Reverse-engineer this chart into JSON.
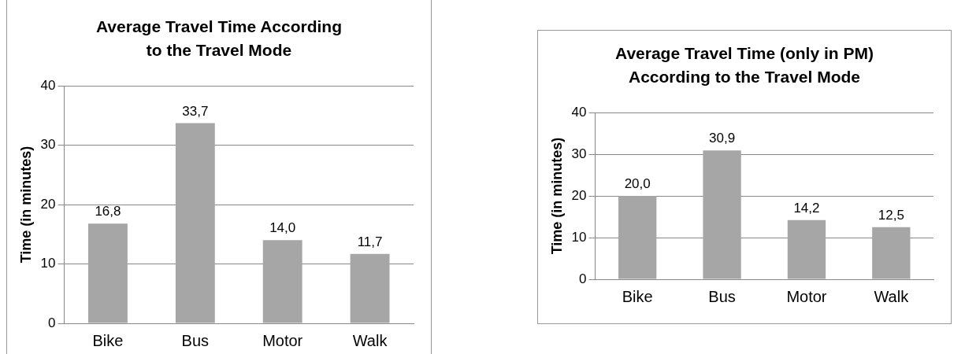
{
  "chart_data": [
    {
      "type": "bar",
      "title": "Average Travel Time According to the Travel Mode",
      "ylabel": "Time (in minutes)",
      "categories": [
        "Bike",
        "Bus",
        "Motor",
        "Walk"
      ],
      "values": [
        16.8,
        33.7,
        14.0,
        11.7
      ],
      "value_labels": [
        "16,8",
        "33,7",
        "14,0",
        "11,7"
      ],
      "color": "#a6a6a6",
      "ylim": [
        0,
        40
      ],
      "yticks": [
        0,
        10,
        20,
        30,
        40
      ],
      "grid": "y"
    },
    {
      "type": "bar",
      "title": "Average Travel Time (only in PM) According to the Travel Mode",
      "ylabel": "Time (in minutes)",
      "categories": [
        "Bike",
        "Bus",
        "Motor",
        "Walk"
      ],
      "values": [
        20.0,
        30.9,
        14.2,
        12.5
      ],
      "value_labels": [
        "20,0",
        "30,9",
        "14,2",
        "12,5"
      ],
      "color": "#a6a6a6",
      "ylim": [
        0,
        40
      ],
      "yticks": [
        0,
        10,
        20,
        30,
        40
      ],
      "grid": "y"
    }
  ]
}
